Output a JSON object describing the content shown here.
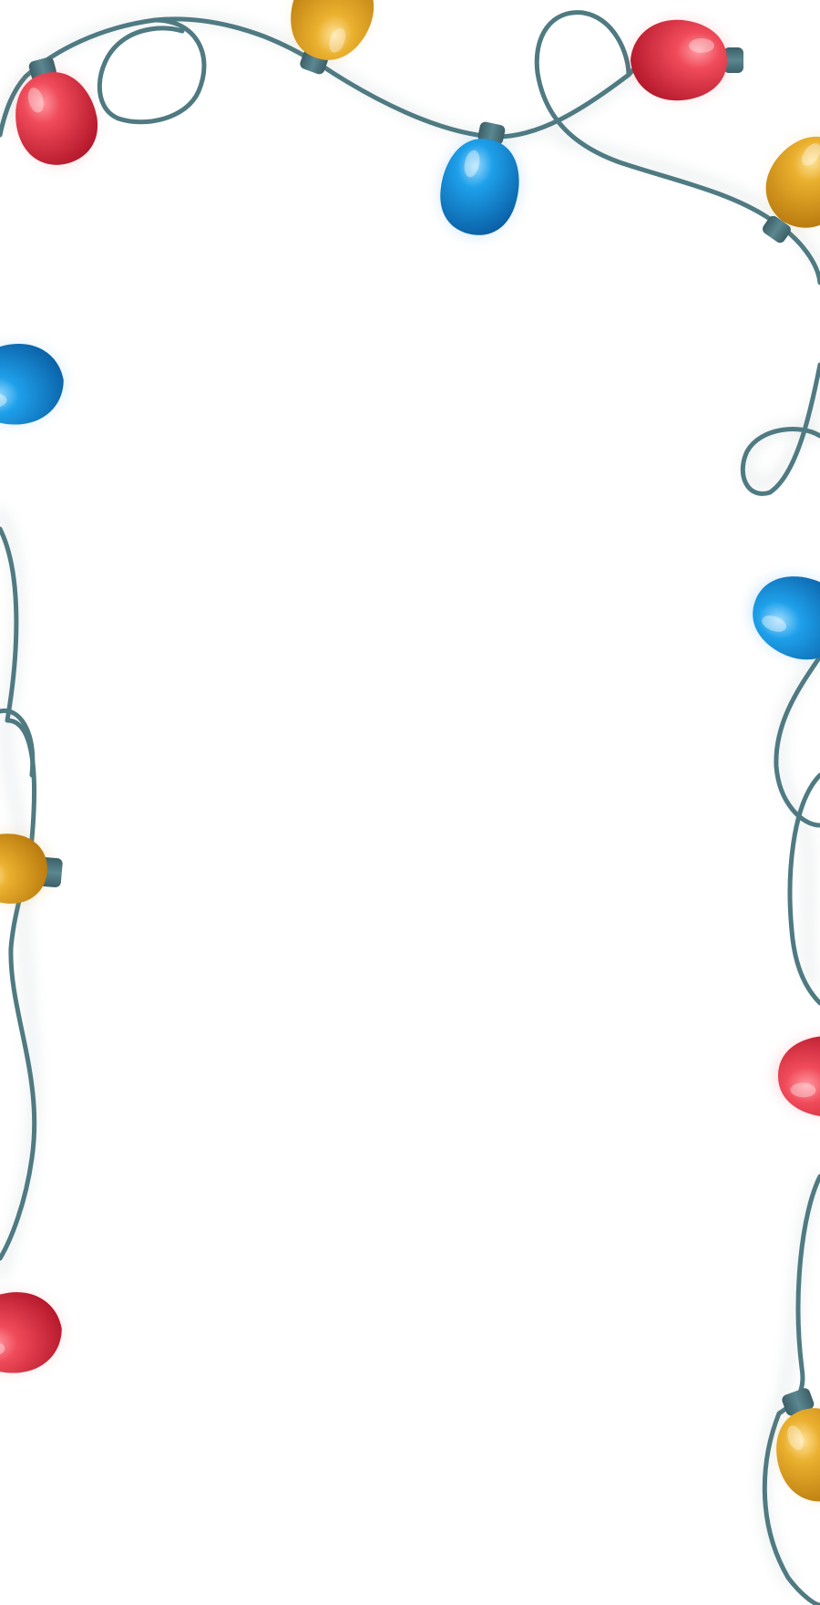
{
  "scene": {
    "subject": "string-lights-border",
    "background_color": "#ffffff",
    "wire_color": "#4f7a82",
    "socket_color": "#476e77",
    "bulb_colors": {
      "red": "#e23a4a",
      "blue": "#1a8fd8",
      "yellow": "#e0a020"
    },
    "bulbs": [
      {
        "name": "bulb-red-top-left",
        "color": "red"
      },
      {
        "name": "bulb-yellow-top-center",
        "color": "yellow"
      },
      {
        "name": "bulb-blue-top-middle",
        "color": "blue"
      },
      {
        "name": "bulb-red-top-right",
        "color": "red"
      },
      {
        "name": "bulb-yellow-right-edge",
        "color": "yellow"
      },
      {
        "name": "bulb-blue-left-edge",
        "color": "blue"
      },
      {
        "name": "bulb-blue-right-mid",
        "color": "blue"
      },
      {
        "name": "bulb-yellow-left-mid",
        "color": "yellow"
      },
      {
        "name": "bulb-red-right-lower",
        "color": "red"
      },
      {
        "name": "bulb-red-left-lower",
        "color": "red"
      },
      {
        "name": "bulb-yellow-right-bottom",
        "color": "yellow"
      }
    ]
  }
}
